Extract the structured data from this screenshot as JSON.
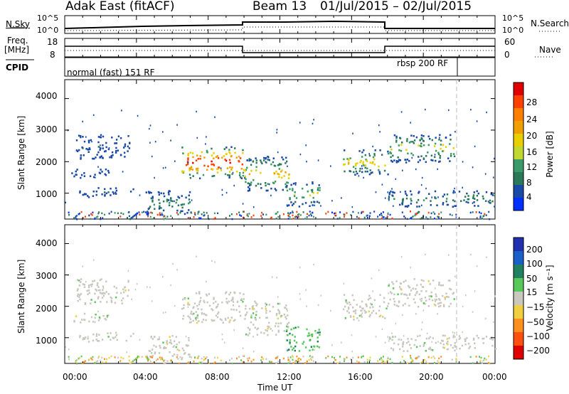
{
  "header": {
    "station": "Adak East (fitACF)",
    "beam": "Beam 13",
    "dates": "01/Jul/2015 – 02/Jul/2015"
  },
  "noise_panel": {
    "left_label": "N.Sky",
    "right_label": "N.Search",
    "tick_top": "10^5",
    "tick_bottom": "10^0"
  },
  "freq_panel": {
    "left_label": "Freq.",
    "left_unit": "[MHz]",
    "right_label": "Nave",
    "left_ticks": [
      "18",
      "8"
    ],
    "right_ticks": [
      "60",
      "0"
    ]
  },
  "cpid_panel": {
    "label": "CPID",
    "modes": [
      "normal (fast) 151 RF",
      "rbsp 200 RF"
    ]
  },
  "power_panel": {
    "ylabel": "Slant Range [km]",
    "yticks": [
      "4000",
      "3000",
      "2000",
      "1000"
    ],
    "cbar_label": "Power [dB]",
    "cbar_ticks": [
      "28",
      "24",
      "20",
      "16",
      "12",
      "8",
      "4"
    ],
    "cbar_colors": [
      "#e00000",
      "#ff4000",
      "#ff8000",
      "#f0a000",
      "#e8d000",
      "#c0d830",
      "#3a9a6a",
      "#2a7a5a",
      "#1a4aa8",
      "#0030ff"
    ]
  },
  "velocity_panel": {
    "ylabel": "Slant Range [km]",
    "yticks": [
      "4000",
      "3000",
      "2000",
      "1000"
    ],
    "cbar_label": "Velocity [m s⁻¹]",
    "cbar_ticks": [
      "200",
      "100",
      "50",
      "15",
      "−15",
      "−50",
      "−100",
      "−200"
    ],
    "cbar_colors": [
      "#2030b0",
      "#1a60c8",
      "#208060",
      "#58c858",
      "#c8c8c0",
      "#f0d040",
      "#ff9020",
      "#ff5010",
      "#e00000"
    ]
  },
  "xaxis": {
    "label": "Time UT",
    "ticks": [
      "00:00",
      "04:00",
      "08:00",
      "12:00",
      "16:00",
      "20:00",
      "00:00"
    ]
  },
  "chart_data": {
    "type": "heatmap",
    "xlabel": "Time UT",
    "ylabel": "Slant Range [km]",
    "x_range_hours": [
      0,
      24
    ],
    "y_range_km": [
      180,
      4600
    ],
    "frequency_mhz_segments": [
      {
        "start_h": 0,
        "end_h": 10,
        "value": 12
      },
      {
        "start_h": 10,
        "end_h": 18,
        "value": 10
      },
      {
        "start_h": 18,
        "end_h": 24,
        "value": 12
      }
    ],
    "cpid_change_hour": 21.8,
    "scatter_regions": [
      {
        "t0": 0.6,
        "t1": 3.6,
        "r0": 2100,
        "r1": 2900,
        "power_db": 8,
        "velocity": "low"
      },
      {
        "t0": 0.3,
        "t1": 2.5,
        "r0": 1500,
        "r1": 1800,
        "power_db": 8,
        "velocity": "low"
      },
      {
        "t0": 0.8,
        "t1": 3.8,
        "r0": 900,
        "r1": 1200,
        "power_db": 8,
        "velocity": "low"
      },
      {
        "t0": 6.5,
        "t1": 10.0,
        "r0": 1500,
        "r1": 2500,
        "power_db": 26,
        "velocity": "low"
      },
      {
        "t0": 10.0,
        "t1": 12.5,
        "r0": 1100,
        "r1": 2200,
        "power_db": 18,
        "velocity": "low"
      },
      {
        "t0": 12.3,
        "t1": 14.2,
        "r0": 600,
        "r1": 1400,
        "power_db": 16,
        "velocity": "positive"
      },
      {
        "t0": 15.5,
        "t1": 18.0,
        "r0": 1600,
        "r1": 2400,
        "power_db": 18,
        "velocity": "low"
      },
      {
        "t0": 18.0,
        "t1": 21.7,
        "r0": 2000,
        "r1": 2900,
        "power_db": 16,
        "velocity": "low"
      },
      {
        "t0": 18.0,
        "t1": 24.0,
        "r0": 600,
        "r1": 1100,
        "power_db": 12,
        "velocity": "low"
      },
      {
        "t0": 4.5,
        "t1": 7.0,
        "r0": 300,
        "r1": 1100,
        "power_db": 12,
        "velocity": "low"
      }
    ]
  }
}
